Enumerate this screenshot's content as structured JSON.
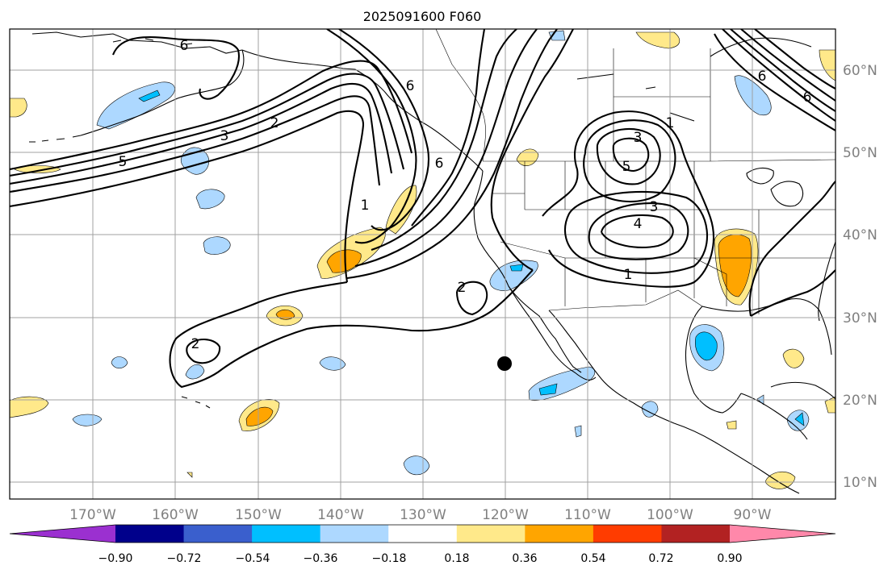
{
  "title": "2025091600 F060",
  "longitude_labels": [
    "170°W",
    "160°W",
    "150°W",
    "140°W",
    "130°W",
    "120°W",
    "110°W",
    "100°W",
    "90°W"
  ],
  "latitude_labels": [
    "60°N",
    "50°N",
    "40°N",
    "30°N",
    "20°N",
    "10°N"
  ],
  "colorbar": {
    "ticks": [
      "−0.90",
      "−0.72",
      "−0.54",
      "−0.36",
      "−0.18",
      "0.18",
      "0.36",
      "0.54",
      "0.72",
      "0.90"
    ],
    "colors": [
      "#9b30d0",
      "#00008b",
      "#3a5fcd",
      "#00bfff",
      "#add8ff",
      "#ffffff",
      "#ffe98a",
      "#ffa500",
      "#ff3c00",
      "#b22222",
      "#ff88aa"
    ]
  },
  "anomaly_colors": {
    "light_blue": "#add8ff",
    "blue": "#00bfff",
    "light_yellow": "#ffe98a",
    "orange": "#ffa500"
  },
  "contour_labels": [
    "6",
    "5",
    "3",
    "2",
    "1",
    "6",
    "6",
    "1",
    "2",
    "2",
    "3",
    "5",
    "3",
    "4",
    "1",
    "6",
    "6"
  ],
  "marker": {
    "lon": "120°W",
    "lat": "24°N"
  }
}
